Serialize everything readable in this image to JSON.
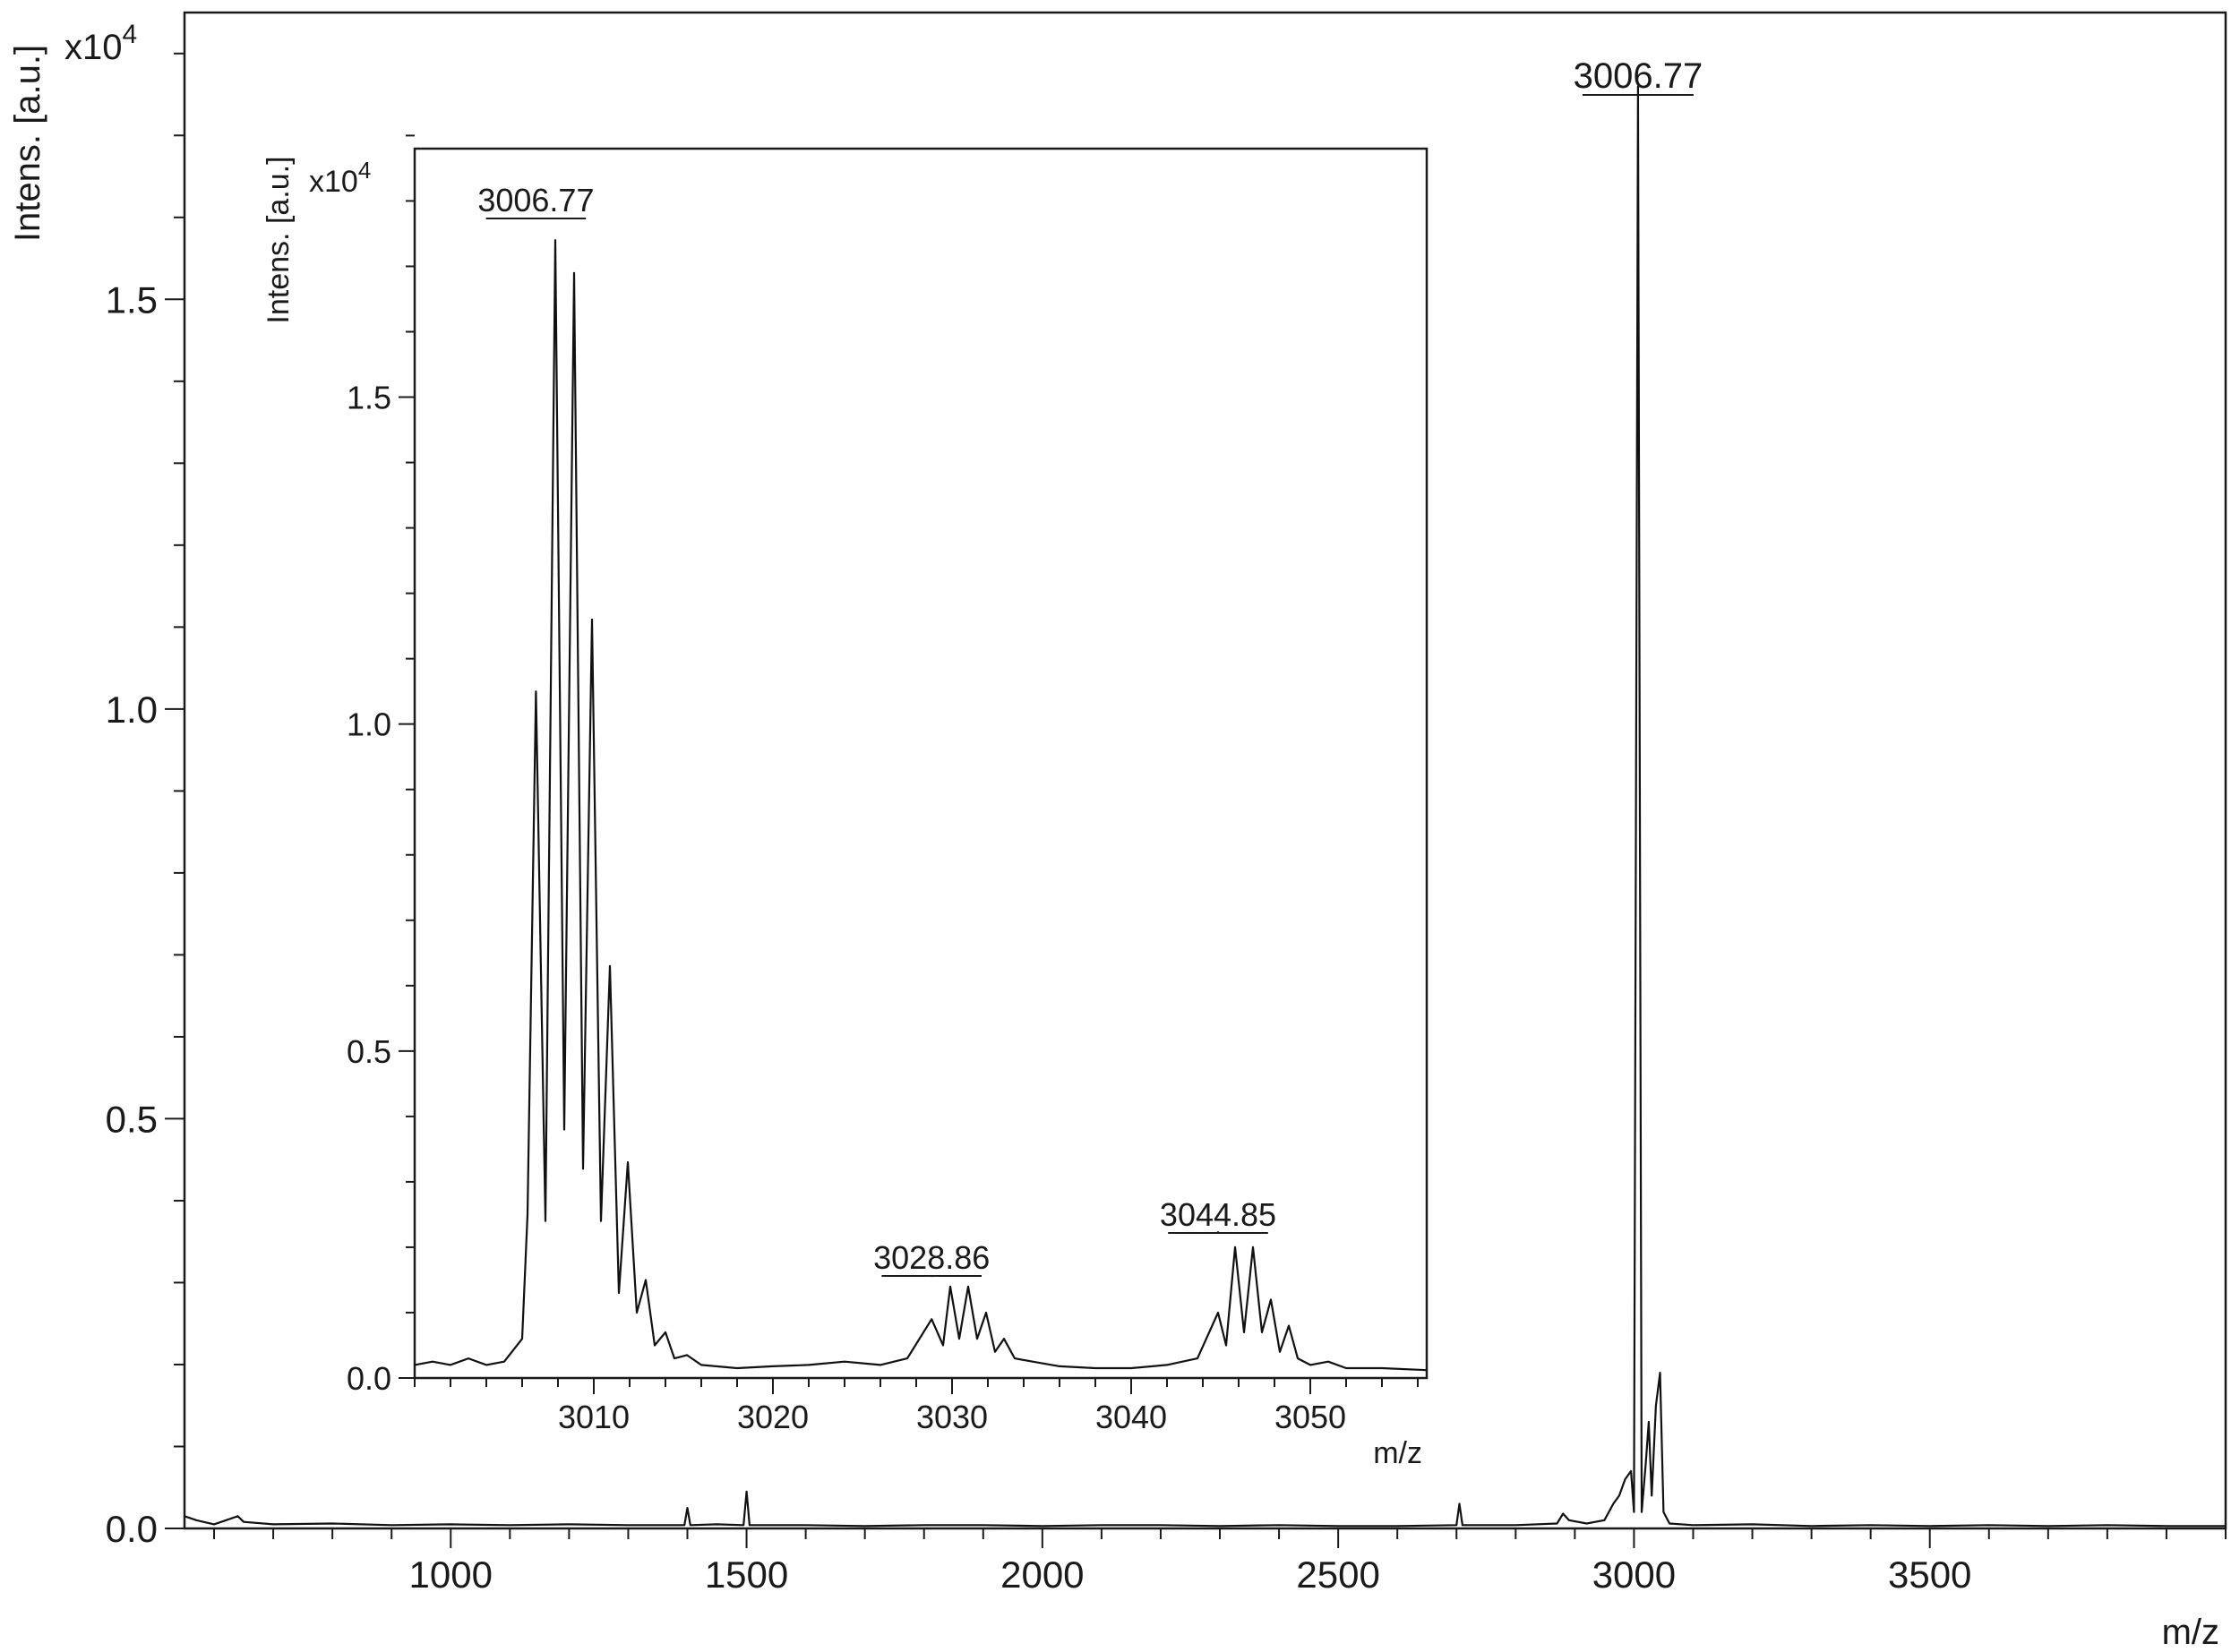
{
  "chart_data": [
    {
      "type": "line",
      "role": "main",
      "xlabel": "m/z",
      "ylabel": "Intens. [a.u.]",
      "y_multiplier_base": "x10",
      "y_multiplier_exp": "4",
      "xlim": [
        550,
        4000
      ],
      "ylim": [
        0,
        1.85
      ],
      "x_major_ticks": [
        1000,
        1500,
        2000,
        2500,
        3000,
        3500
      ],
      "x_minor_step": 100,
      "y_major_ticks": [
        0.0,
        0.5,
        1.0,
        1.5
      ],
      "y_tick_labels": [
        "0.0",
        "0.5",
        "1.0",
        "1.5"
      ],
      "y_minor_step": 0.1,
      "peak_label": {
        "x": 3006.77,
        "y": 1.76,
        "text": "3006.77"
      },
      "points": [
        [
          550,
          0.015
        ],
        [
          570,
          0.01
        ],
        [
          600,
          0.005
        ],
        [
          640,
          0.015
        ],
        [
          650,
          0.008
        ],
        [
          700,
          0.005
        ],
        [
          800,
          0.006
        ],
        [
          900,
          0.004
        ],
        [
          1000,
          0.005
        ],
        [
          1100,
          0.004
        ],
        [
          1200,
          0.005
        ],
        [
          1300,
          0.004
        ],
        [
          1395,
          0.004
        ],
        [
          1400,
          0.025
        ],
        [
          1405,
          0.004
        ],
        [
          1450,
          0.005
        ],
        [
          1495,
          0.004
        ],
        [
          1500,
          0.045
        ],
        [
          1505,
          0.004
        ],
        [
          1600,
          0.004
        ],
        [
          1700,
          0.003
        ],
        [
          1800,
          0.004
        ],
        [
          1900,
          0.004
        ],
        [
          2000,
          0.003
        ],
        [
          2100,
          0.004
        ],
        [
          2200,
          0.004
        ],
        [
          2300,
          0.003
        ],
        [
          2400,
          0.004
        ],
        [
          2500,
          0.003
        ],
        [
          2600,
          0.003
        ],
        [
          2700,
          0.004
        ],
        [
          2705,
          0.03
        ],
        [
          2710,
          0.004
        ],
        [
          2800,
          0.004
        ],
        [
          2870,
          0.006
        ],
        [
          2880,
          0.018
        ],
        [
          2890,
          0.01
        ],
        [
          2920,
          0.006
        ],
        [
          2950,
          0.01
        ],
        [
          2965,
          0.03
        ],
        [
          2975,
          0.04
        ],
        [
          2985,
          0.06
        ],
        [
          2995,
          0.07
        ],
        [
          3000,
          0.02
        ],
        [
          3006.77,
          1.76
        ],
        [
          3013,
          0.02
        ],
        [
          3020,
          0.08
        ],
        [
          3025,
          0.13
        ],
        [
          3030,
          0.04
        ],
        [
          3037,
          0.15
        ],
        [
          3044,
          0.19
        ],
        [
          3050,
          0.02
        ],
        [
          3060,
          0.006
        ],
        [
          3100,
          0.004
        ],
        [
          3200,
          0.005
        ],
        [
          3300,
          0.003
        ],
        [
          3400,
          0.004
        ],
        [
          3500,
          0.003
        ],
        [
          3600,
          0.004
        ],
        [
          3700,
          0.003
        ],
        [
          3800,
          0.004
        ],
        [
          3900,
          0.003
        ],
        [
          4000,
          0.003
        ]
      ]
    },
    {
      "type": "line",
      "role": "inset",
      "xlabel": "m/z",
      "ylabel": "Intens. [a.u.]",
      "y_multiplier_base": "x10",
      "y_multiplier_exp": "4",
      "xlim": [
        3000,
        3056.5
      ],
      "ylim": [
        0,
        1.88
      ],
      "x_major_ticks": [
        3010,
        3020,
        3030,
        3040,
        3050
      ],
      "x_minor_step": 2,
      "y_major_ticks": [
        0.0,
        0.5,
        1.0,
        1.5
      ],
      "y_tick_labels": [
        "0.0",
        "0.5",
        "1.0",
        "1.5"
      ],
      "y_minor_step": 0.1,
      "peak_labels": [
        {
          "x": 3006.77,
          "y": 1.78,
          "text": "3006.77"
        },
        {
          "x": 3028.86,
          "y": 0.16,
          "text": "3028.86"
        },
        {
          "x": 3044.85,
          "y": 0.23,
          "text": "3044.85"
        }
      ],
      "points": [
        [
          3000,
          0.02
        ],
        [
          3001,
          0.025
        ],
        [
          3002,
          0.02
        ],
        [
          3003,
          0.03
        ],
        [
          3004,
          0.02
        ],
        [
          3005,
          0.025
        ],
        [
          3006.0,
          0.06
        ],
        [
          3006.3,
          0.25
        ],
        [
          3006.77,
          1.05
        ],
        [
          3007.3,
          0.24
        ],
        [
          3007.85,
          1.74
        ],
        [
          3008.35,
          0.38
        ],
        [
          3008.9,
          1.69
        ],
        [
          3009.4,
          0.32
        ],
        [
          3009.9,
          1.16
        ],
        [
          3010.4,
          0.24
        ],
        [
          3010.9,
          0.63
        ],
        [
          3011.4,
          0.13
        ],
        [
          3011.9,
          0.33
        ],
        [
          3012.4,
          0.1
        ],
        [
          3012.9,
          0.15
        ],
        [
          3013.4,
          0.05
        ],
        [
          3014.0,
          0.07
        ],
        [
          3014.5,
          0.03
        ],
        [
          3015.2,
          0.035
        ],
        [
          3016,
          0.02
        ],
        [
          3018,
          0.015
        ],
        [
          3020,
          0.018
        ],
        [
          3022,
          0.02
        ],
        [
          3024,
          0.025
        ],
        [
          3026,
          0.02
        ],
        [
          3027.5,
          0.03
        ],
        [
          3028.86,
          0.09
        ],
        [
          3029.5,
          0.05
        ],
        [
          3029.9,
          0.14
        ],
        [
          3030.4,
          0.06
        ],
        [
          3030.9,
          0.14
        ],
        [
          3031.4,
          0.06
        ],
        [
          3031.9,
          0.1
        ],
        [
          3032.4,
          0.04
        ],
        [
          3032.9,
          0.06
        ],
        [
          3033.5,
          0.03
        ],
        [
          3034.5,
          0.025
        ],
        [
          3036,
          0.018
        ],
        [
          3038,
          0.015
        ],
        [
          3040,
          0.015
        ],
        [
          3042,
          0.02
        ],
        [
          3043.7,
          0.03
        ],
        [
          3044.85,
          0.1
        ],
        [
          3045.3,
          0.05
        ],
        [
          3045.8,
          0.2
        ],
        [
          3046.3,
          0.07
        ],
        [
          3046.8,
          0.2
        ],
        [
          3047.3,
          0.07
        ],
        [
          3047.8,
          0.12
        ],
        [
          3048.3,
          0.04
        ],
        [
          3048.8,
          0.08
        ],
        [
          3049.3,
          0.03
        ],
        [
          3050,
          0.02
        ],
        [
          3051,
          0.025
        ],
        [
          3052,
          0.015
        ],
        [
          3054,
          0.015
        ],
        [
          3056.5,
          0.012
        ]
      ]
    }
  ]
}
